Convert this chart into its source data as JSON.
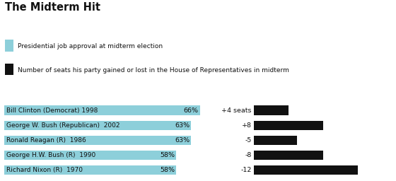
{
  "title": "The Midterm Hit",
  "legend_approval": "Presidential job approval at midterm election",
  "legend_seats": "Number of seats his party gained or lost in the House of Representatives in midterm",
  "presidents": [
    "Bill Clinton (Democrat) 1998",
    "George W. Bush (Republican)  2002",
    "Ronald Reagan (R)  1986",
    "George H.W. Bush (R)  1990",
    "Richard Nixon (R)  1970"
  ],
  "approval": [
    66,
    63,
    63,
    58,
    58
  ],
  "seats": [
    4,
    8,
    5,
    8,
    12
  ],
  "seat_labels": [
    "+4 seats",
    "+8",
    "-5",
    "-8",
    "-12"
  ],
  "approval_color": "#8DCFDA",
  "seats_color": "#111111",
  "background_color": "#ffffff",
  "bar_xlim": 80,
  "seats_xlim": 16
}
